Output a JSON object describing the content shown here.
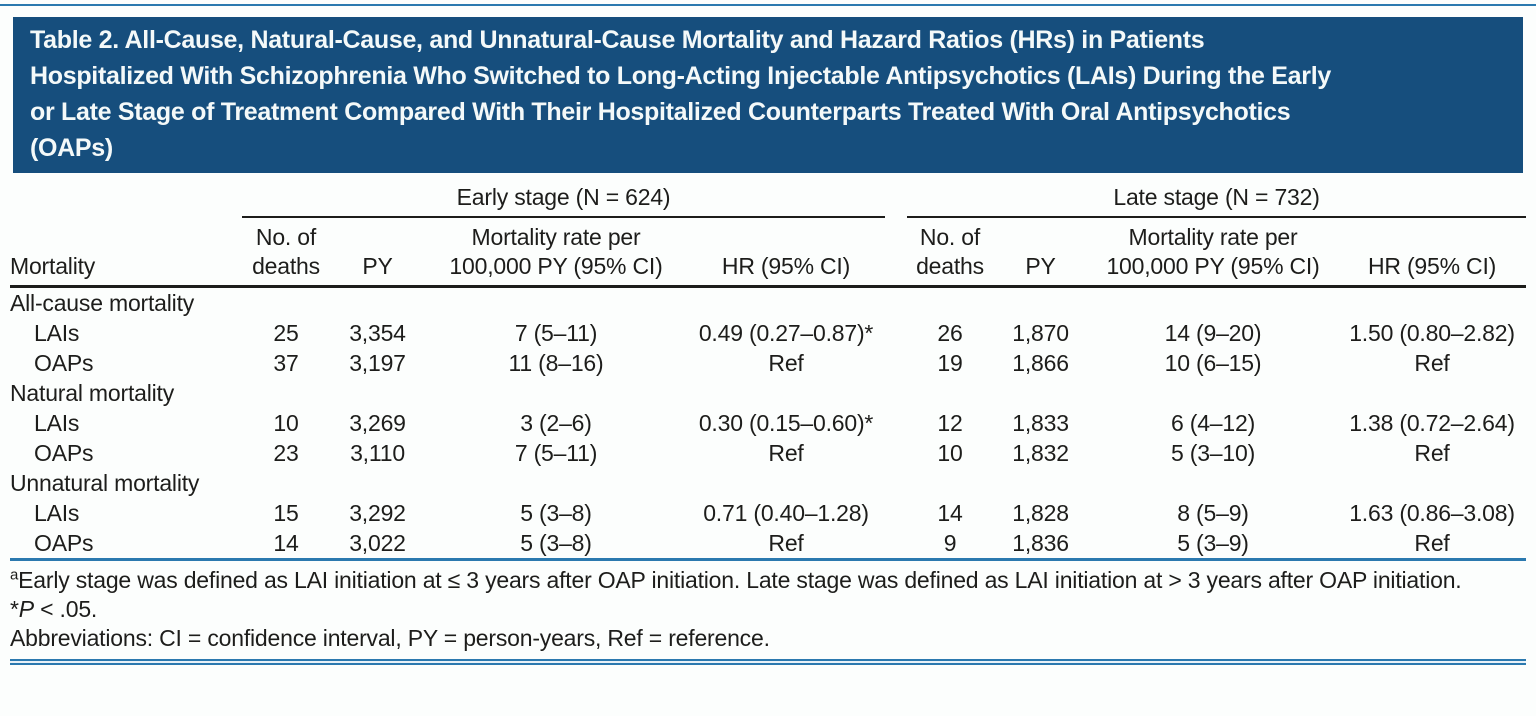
{
  "colors": {
    "title_background": "#164e7d",
    "title_text": "#f4f9f9",
    "rule_blue": "#2b79af",
    "table_rule_black": "#1d1d1b",
    "body_text": "#1d1d1b"
  },
  "title": {
    "lines": [
      "Table 2. All-Cause, Natural-Cause, and Unnatural-Cause Mortality and Hazard Ratios (HRs) in Patients",
      "Hospitalized With Schizophrenia Who Switched to Long-Acting Injectable Antipsychotics (LAIs) During the Early",
      "or Late Stage of Treatment Compared With Their Hospitalized Counterparts Treated With Oral Antipsychotics",
      "(OAPs)"
    ]
  },
  "table": {
    "row_header": "Mortality",
    "groups": [
      {
        "label": "Early stage (N = 624)",
        "n": 624
      },
      {
        "label": "Late stage (N = 732)",
        "n": 732
      }
    ],
    "subheaders": {
      "deaths": "No. of deaths",
      "py": "PY",
      "rate": "Mortality rate per 100,000 PY (95% CI)",
      "hr": "HR (95% CI)"
    },
    "rows": [
      {
        "label": "All-cause mortality",
        "section": true
      },
      {
        "label": "LAIs",
        "early": [
          "25",
          "3,354",
          "7 (5–11)",
          "0.49 (0.27–0.87)*"
        ],
        "late": [
          "26",
          "1,870",
          "14 (9–20)",
          "1.50 (0.80–2.82)"
        ]
      },
      {
        "label": "OAPs",
        "early": [
          "37",
          "3,197",
          "11 (8–16)",
          "Ref"
        ],
        "late": [
          "19",
          "1,866",
          "10 (6–15)",
          "Ref"
        ]
      },
      {
        "label": "Natural mortality",
        "section": true
      },
      {
        "label": "LAIs",
        "early": [
          "10",
          "3,269",
          "3 (2–6)",
          "0.30 (0.15–0.60)*"
        ],
        "late": [
          "12",
          "1,833",
          "6 (4–12)",
          "1.38 (0.72–2.64)"
        ]
      },
      {
        "label": "OAPs",
        "early": [
          "23",
          "3,110",
          "7 (5–11)",
          "Ref"
        ],
        "late": [
          "10",
          "1,832",
          "5 (3–10)",
          "Ref"
        ]
      },
      {
        "label": "Unnatural mortality",
        "section": true
      },
      {
        "label": "LAIs",
        "early": [
          "15",
          "3,292",
          "5 (3–8)",
          "0.71 (0.40–1.28)"
        ],
        "late": [
          "14",
          "1,828",
          "8 (5–9)",
          "1.63 (0.86–3.08)"
        ]
      },
      {
        "label": "OAPs",
        "early": [
          "14",
          "3,022",
          "5 (3–8)",
          "Ref"
        ],
        "late": [
          "9",
          "1,836",
          "5 (3–9)",
          "Ref"
        ]
      }
    ]
  },
  "footnotes": {
    "a_sup": "a",
    "a_text": "Early stage was defined as LAI initiation at ≤ 3 years after OAP initiation. Late stage was defined as LAI initiation at > 3 years after OAP initiation.",
    "sig_star": "*",
    "sig_p": "P",
    "sig_rest": " < .05.",
    "abbreviations": "Abbreviations: CI = confidence interval, PY = person-years, Ref = reference."
  }
}
